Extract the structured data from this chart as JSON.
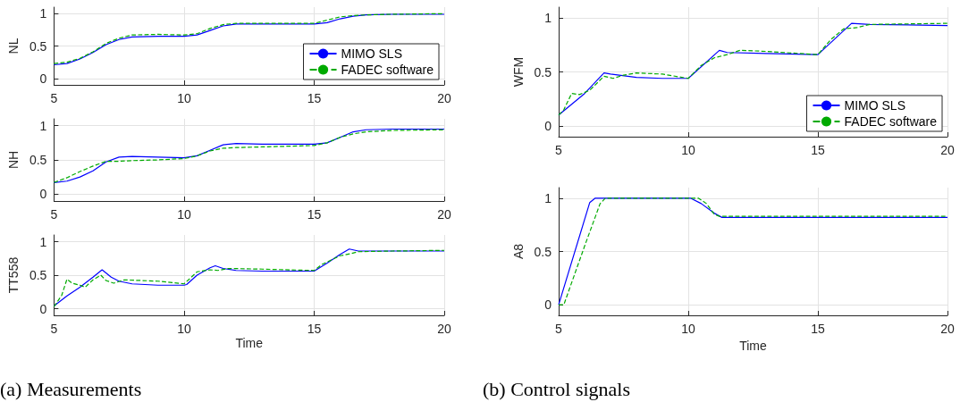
{
  "chart_data": [
    {
      "type": "line",
      "ylabel": "NL",
      "xlim": [
        5,
        20
      ],
      "xticks": [
        5,
        10,
        15,
        20
      ],
      "ylim": [
        -0.1,
        1.1
      ],
      "yticks": [
        0,
        0.5,
        1
      ],
      "grid": true,
      "legend": "bottom right",
      "series": [
        {
          "name": "MIMO SLS",
          "color": "#0000ff",
          "line_style": "solid",
          "x": [
            5,
            5.5,
            6,
            6.5,
            7,
            7.5,
            8,
            9,
            10,
            10.5,
            11,
            11.5,
            12,
            13,
            15,
            15.5,
            16,
            16.5,
            17,
            18,
            20
          ],
          "values": [
            0.21,
            0.23,
            0.3,
            0.4,
            0.52,
            0.6,
            0.64,
            0.65,
            0.65,
            0.67,
            0.74,
            0.81,
            0.84,
            0.84,
            0.84,
            0.86,
            0.92,
            0.96,
            0.98,
            0.99,
            0.99
          ]
        },
        {
          "name": "FADEC software",
          "color": "#00aa00",
          "line_style": "dashed",
          "x": [
            5,
            5.5,
            6,
            6.5,
            7,
            7.5,
            8,
            9,
            10,
            10.5,
            11,
            11.5,
            12,
            13,
            15,
            15.5,
            16,
            16.5,
            17,
            18,
            20
          ],
          "values": [
            0.23,
            0.25,
            0.31,
            0.41,
            0.54,
            0.62,
            0.67,
            0.68,
            0.67,
            0.69,
            0.77,
            0.83,
            0.85,
            0.85,
            0.85,
            0.9,
            0.95,
            0.97,
            0.98,
            0.99,
            1.0
          ]
        }
      ]
    },
    {
      "type": "line",
      "ylabel": "NH",
      "xlim": [
        5,
        20
      ],
      "xticks": [
        5,
        10,
        15,
        20
      ],
      "ylim": [
        -0.1,
        1.1
      ],
      "yticks": [
        0,
        0.5,
        1
      ],
      "grid": true,
      "series": [
        {
          "color": "#0000ff",
          "line_style": "solid",
          "x": [
            5,
            5.5,
            6,
            6.5,
            7,
            7.5,
            8,
            9,
            10,
            10.5,
            11,
            11.5,
            12,
            13,
            15,
            15.5,
            16,
            16.5,
            17,
            18,
            20
          ],
          "values": [
            0.17,
            0.19,
            0.25,
            0.34,
            0.47,
            0.54,
            0.55,
            0.54,
            0.53,
            0.56,
            0.64,
            0.72,
            0.74,
            0.73,
            0.73,
            0.75,
            0.83,
            0.91,
            0.94,
            0.95,
            0.95
          ]
        },
        {
          "color": "#00aa00",
          "line_style": "dashed",
          "x": [
            5,
            5.5,
            6,
            6.5,
            7,
            7.5,
            8,
            9,
            10,
            10.5,
            11,
            11.5,
            12,
            13,
            15,
            15.5,
            16,
            16.5,
            17,
            18,
            20
          ],
          "values": [
            0.17,
            0.24,
            0.33,
            0.41,
            0.48,
            0.48,
            0.49,
            0.5,
            0.52,
            0.56,
            0.63,
            0.67,
            0.68,
            0.69,
            0.71,
            0.75,
            0.83,
            0.88,
            0.91,
            0.93,
            0.94
          ]
        }
      ]
    },
    {
      "type": "line",
      "ylabel": "TT558",
      "xlabel": "Time",
      "xlim": [
        5,
        20
      ],
      "xticks": [
        5,
        10,
        15,
        20
      ],
      "ylim": [
        -0.1,
        1.1
      ],
      "yticks": [
        0,
        0.5,
        1
      ],
      "grid": true,
      "annotations": [
        "(a) Measurements"
      ],
      "series": [
        {
          "color": "#0000ff",
          "line_style": "solid",
          "x": [
            5,
            5.5,
            6,
            6.5,
            6.85,
            7.2,
            7.5,
            8,
            9,
            10,
            10.1,
            10.5,
            11,
            11.2,
            11.5,
            12,
            13,
            15,
            15.5,
            16,
            16.35,
            16.7,
            17,
            20
          ],
          "values": [
            0.04,
            0.19,
            0.32,
            0.47,
            0.58,
            0.47,
            0.41,
            0.37,
            0.35,
            0.35,
            0.36,
            0.5,
            0.61,
            0.64,
            0.6,
            0.57,
            0.56,
            0.56,
            0.68,
            0.81,
            0.89,
            0.86,
            0.86,
            0.86
          ]
        },
        {
          "color": "#00aa00",
          "line_style": "dashed",
          "x": [
            5,
            5.3,
            5.5,
            5.7,
            6,
            6.2,
            6.5,
            6.8,
            7,
            7.3,
            7.7,
            9,
            10,
            10.2,
            10.5,
            11,
            11.3,
            11.7,
            13,
            15,
            15.3,
            16,
            16.4,
            16.7,
            18,
            20
          ],
          "values": [
            0.03,
            0.2,
            0.44,
            0.38,
            0.35,
            0.32,
            0.43,
            0.5,
            0.42,
            0.38,
            0.43,
            0.41,
            0.37,
            0.44,
            0.55,
            0.58,
            0.57,
            0.6,
            0.59,
            0.57,
            0.66,
            0.79,
            0.82,
            0.85,
            0.86,
            0.87
          ]
        }
      ]
    },
    {
      "type": "line",
      "ylabel": "WFM",
      "xlim": [
        5,
        20
      ],
      "xticks": [
        5,
        10,
        15,
        20
      ],
      "ylim": [
        -0.1,
        1.1
      ],
      "yticks": [
        0,
        0.5,
        1
      ],
      "grid": true,
      "legend": "bottom right",
      "series": [
        {
          "name": "MIMO SLS",
          "color": "#0000ff",
          "line_style": "solid",
          "x": [
            5,
            6,
            6.75,
            7,
            8,
            9,
            10,
            11.2,
            11.5,
            13,
            15,
            16.3,
            17,
            20
          ],
          "values": [
            0.1,
            0.3,
            0.49,
            0.48,
            0.45,
            0.44,
            0.44,
            0.7,
            0.68,
            0.67,
            0.66,
            0.95,
            0.94,
            0.93
          ]
        },
        {
          "name": "FADEC software",
          "color": "#00aa00",
          "line_style": "dashed",
          "x": [
            5,
            5.2,
            5.5,
            5.8,
            6.2,
            6.75,
            7.1,
            7.5,
            8,
            9,
            10,
            10.5,
            11,
            11.5,
            12,
            13,
            15,
            15.5,
            16,
            16.5,
            17,
            20
          ],
          "values": [
            0.1,
            0.15,
            0.3,
            0.29,
            0.33,
            0.46,
            0.44,
            0.47,
            0.49,
            0.48,
            0.44,
            0.56,
            0.63,
            0.66,
            0.7,
            0.69,
            0.66,
            0.8,
            0.9,
            0.91,
            0.94,
            0.95
          ]
        }
      ]
    },
    {
      "type": "line",
      "ylabel": "A8",
      "xlabel": "Time",
      "xlim": [
        5,
        20
      ],
      "xticks": [
        5,
        10,
        15,
        20
      ],
      "ylim": [
        -0.1,
        1.1
      ],
      "yticks": [
        0,
        0.5,
        1
      ],
      "grid": true,
      "annotations": [
        "(b) Control signals"
      ],
      "series": [
        {
          "color": "#0000ff",
          "line_style": "solid",
          "x": [
            5,
            6.2,
            6.4,
            10.1,
            10.5,
            11,
            11.3,
            20
          ],
          "values": [
            0,
            0.96,
            1.0,
            1.0,
            0.95,
            0.86,
            0.82,
            0.82
          ]
        },
        {
          "color": "#00aa00",
          "line_style": "dashed",
          "x": [
            5,
            5.2,
            6,
            6.6,
            6.8,
            10.4,
            10.7,
            11,
            11.2,
            20
          ],
          "values": [
            0,
            0,
            0.55,
            0.95,
            1.0,
            1.0,
            0.95,
            0.85,
            0.83,
            0.83
          ]
        }
      ]
    }
  ]
}
